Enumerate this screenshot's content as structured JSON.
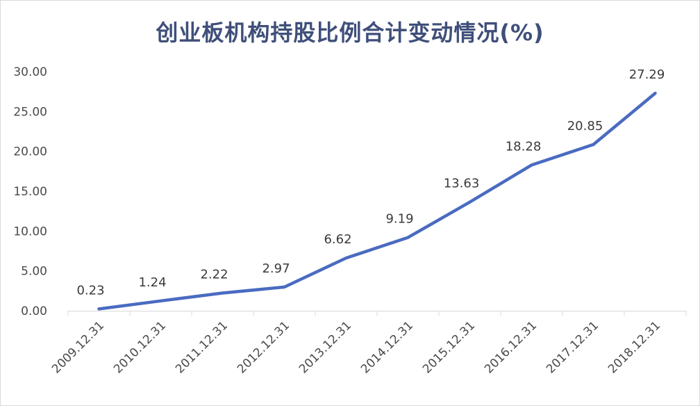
{
  "chart_data": {
    "type": "line",
    "title": "创业板机构持股比例合计变动情况(%)",
    "xlabel": "",
    "ylabel": "",
    "categories": [
      "2009.12.31",
      "2010.12.31",
      "2011.12.31",
      "2012.12.31",
      "2013.12.31",
      "2014.12.31",
      "2015.12.31",
      "2016.12.31",
      "2017.12.31",
      "2018.12.31"
    ],
    "series": [
      {
        "values": [
          0.23,
          1.24,
          2.22,
          2.97,
          6.62,
          9.19,
          13.63,
          18.28,
          20.85,
          27.29
        ],
        "labels": [
          "0.23",
          "1.24",
          "2.22",
          "2.97",
          "6.62",
          "9.19",
          "13.63",
          "18.28",
          "20.85",
          "27.29"
        ],
        "color": "#4a6bc1"
      }
    ],
    "yticks": [
      "0.00",
      "5.00",
      "10.00",
      "15.00",
      "20.00",
      "25.00",
      "30.00"
    ],
    "ylim": [
      0,
      30
    ],
    "grid": false,
    "legend": "none"
  }
}
